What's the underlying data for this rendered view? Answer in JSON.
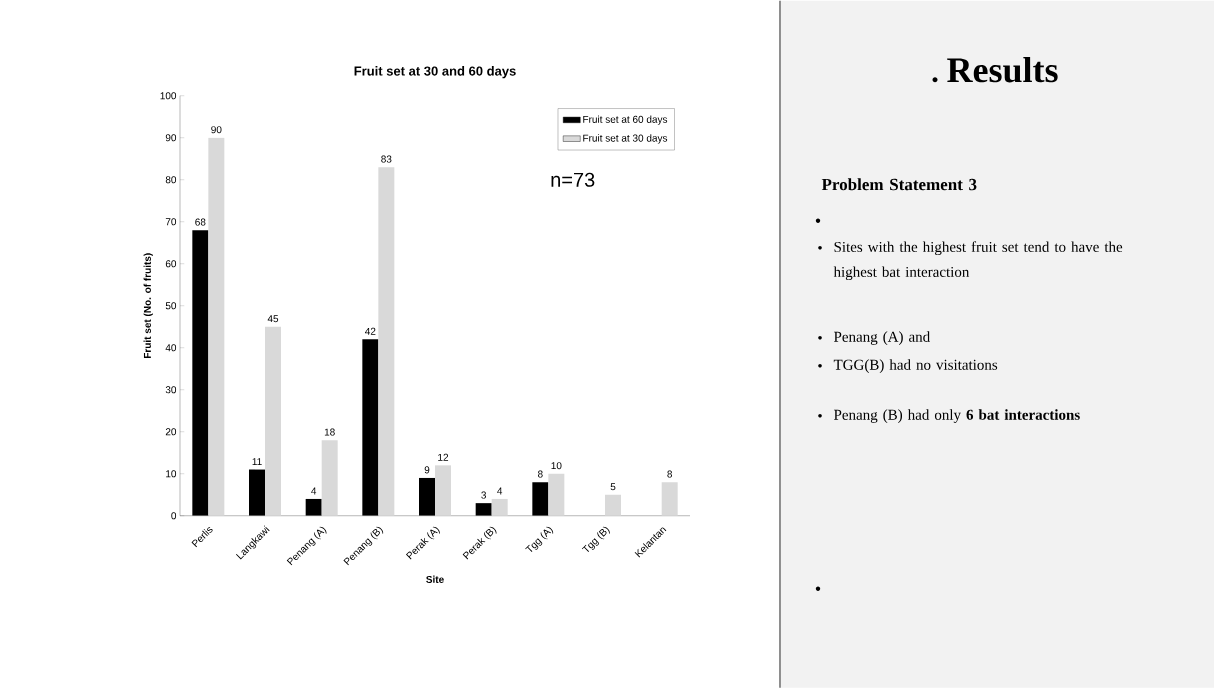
{
  "chart_data": {
    "type": "bar",
    "title": "Fruit set at 30 and 60 days",
    "xlabel": "Site",
    "ylabel": "Fruit set (No. of fruits)",
    "categories": [
      "Perlis",
      "Langkawi",
      "Penang (A)",
      "Penang (B)",
      "Perak (A)",
      "Perak (B)",
      "Tgg (A)",
      "Tgg (B)",
      "Kelantan"
    ],
    "series": [
      {
        "name": "Fruit set at 60 days",
        "color": "#000000",
        "values": [
          68,
          11,
          4,
          42,
          9,
          3,
          8,
          null,
          null
        ]
      },
      {
        "name": "Fruit set at 30 days",
        "color": "#d9d9d9",
        "values": [
          90,
          45,
          18,
          83,
          12,
          4,
          10,
          5,
          8
        ]
      }
    ],
    "ylim": [
      0,
      100
    ],
    "yticks": [
      0,
      10,
      20,
      30,
      40,
      50,
      60,
      70,
      80,
      90,
      100
    ],
    "data_labels": true,
    "legend": "top right",
    "annotations": [
      "n=73",
      "Results",
      "Problem Statement 3",
      "Sites with the highest fruit set tend to have the highest bat interaction",
      "Penang (A) and",
      "TGG(B)  had no visitations",
      "Penang (B) had only **6 bat interactions**"
    ]
  }
}
